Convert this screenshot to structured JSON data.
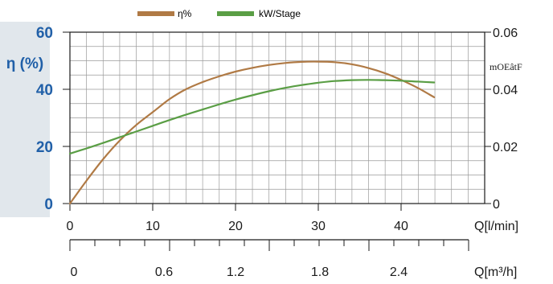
{
  "chart_data": {
    "type": "line",
    "legend": {
      "placement": "top",
      "entries": [
        {
          "name": "η%",
          "color": "#b07a45"
        },
        {
          "name": "kW/Stage",
          "color": "#5a9e45"
        }
      ]
    },
    "left_axis": {
      "label": "η (%)",
      "range": [
        0,
        60
      ],
      "ticks": [
        "0",
        "20",
        "40",
        "60"
      ],
      "color": "#2160a8",
      "panel_color": "#e1e7ec"
    },
    "right_axis": {
      "label": "mOEâtF",
      "range": [
        0,
        0.06
      ],
      "ticks": [
        "0",
        "0.02",
        "0.04",
        "0.06"
      ]
    },
    "x_axis": {
      "label": "Q[l/min]",
      "range": [
        0,
        45
      ],
      "ticks": [
        "0",
        "10",
        "20",
        "30",
        "40"
      ]
    },
    "x_axis_secondary": {
      "label": "Q[m³/h]",
      "ticks": [
        "0",
        "0.6",
        "1.2",
        "1.8",
        "2.4"
      ]
    },
    "grid": true,
    "series": [
      {
        "name": "η%",
        "color": "#b07a45",
        "axis": "left",
        "x": [
          0,
          2,
          4,
          6,
          8,
          10,
          12,
          14,
          16,
          18,
          20,
          22,
          24,
          26,
          28,
          30,
          32,
          34,
          36,
          38,
          40,
          42,
          44
        ],
        "y": [
          0,
          8,
          15.5,
          22,
          27.5,
          32,
          36.5,
          40,
          42.5,
          44.5,
          46.2,
          47.5,
          48.5,
          49.2,
          49.6,
          49.7,
          49.5,
          48.8,
          47.5,
          45.7,
          43.3,
          40.5,
          37.2
        ]
      },
      {
        "name": "kW/Stage",
        "color": "#5a9e45",
        "axis": "right",
        "x": [
          0,
          2,
          4,
          6,
          8,
          10,
          12,
          14,
          16,
          18,
          20,
          22,
          24,
          26,
          28,
          30,
          32,
          34,
          36,
          38,
          40,
          42,
          44
        ],
        "y": [
          0.0175,
          0.0193,
          0.0212,
          0.0232,
          0.0252,
          0.0272,
          0.0292,
          0.0311,
          0.0329,
          0.0347,
          0.0364,
          0.0379,
          0.0393,
          0.0405,
          0.0415,
          0.0423,
          0.0429,
          0.0432,
          0.0433,
          0.0432,
          0.043,
          0.0427,
          0.0424
        ]
      }
    ]
  }
}
